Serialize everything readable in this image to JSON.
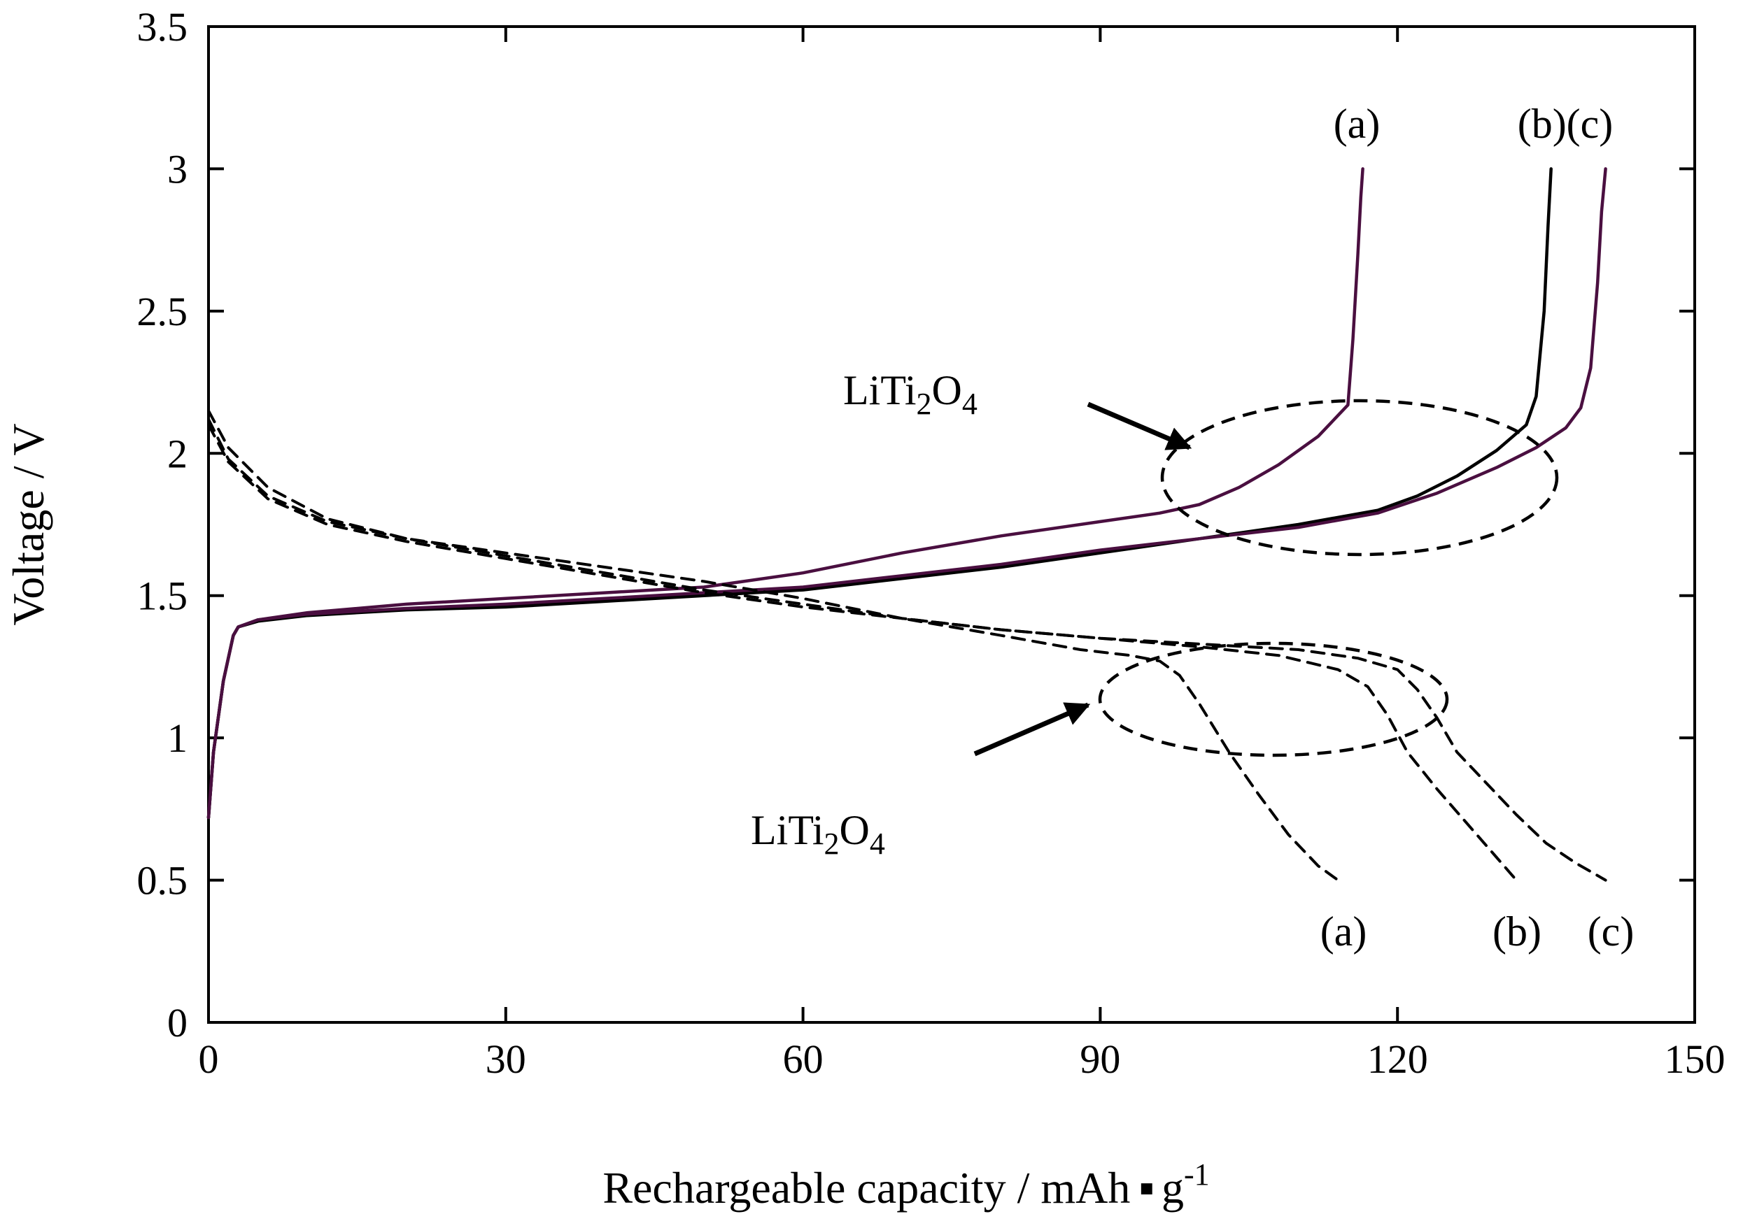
{
  "chart_data": {
    "type": "line",
    "title": "",
    "xlabel": "Rechargeable capacity / mAh",
    "xlabel_dot": "▪",
    "xlabel_unit": "g",
    "xlabel_exp": "-1",
    "ylabel": "Voltage / V",
    "xlim": [
      0,
      150
    ],
    "ylim": [
      0,
      3.5
    ],
    "xticks": [
      0,
      30,
      60,
      90,
      120,
      150
    ],
    "xtick_labels": [
      "0",
      "30",
      "60",
      "90",
      "120",
      "150"
    ],
    "yticks": [
      0,
      0.5,
      1,
      1.5,
      2,
      2.5,
      3,
      3.5
    ],
    "ytick_labels": [
      "0",
      "0.5",
      "1",
      "1.5",
      "2",
      "2.5",
      "3",
      "3.5"
    ],
    "grid": false,
    "colors": {
      "charge_a": "#4a0f40",
      "charge_b": "#000000",
      "charge_c": "#4a0f40",
      "discharge": "#000000"
    },
    "series": [
      {
        "name": "charge (a)",
        "style": "solid",
        "x": [
          0,
          0.5,
          1.5,
          2.5,
          3,
          5,
          10,
          20,
          30,
          40,
          50,
          60,
          70,
          80,
          90,
          96,
          100,
          104,
          108,
          112,
          115,
          115.5,
          116,
          116.3,
          116.5
        ],
        "y": [
          0.72,
          0.95,
          1.2,
          1.36,
          1.39,
          1.415,
          1.44,
          1.47,
          1.49,
          1.51,
          1.53,
          1.58,
          1.65,
          1.71,
          1.76,
          1.79,
          1.82,
          1.88,
          1.96,
          2.06,
          2.17,
          2.4,
          2.7,
          2.9,
          3.0
        ]
      },
      {
        "name": "charge (b)",
        "style": "solid",
        "x": [
          0,
          0.5,
          1.5,
          2.5,
          3,
          5,
          10,
          20,
          30,
          40,
          50,
          60,
          70,
          80,
          90,
          100,
          110,
          118,
          122,
          126,
          130,
          133,
          134,
          134.8,
          135.2,
          135.5
        ],
        "y": [
          0.72,
          0.95,
          1.2,
          1.36,
          1.39,
          1.41,
          1.43,
          1.45,
          1.46,
          1.48,
          1.5,
          1.52,
          1.56,
          1.6,
          1.65,
          1.7,
          1.75,
          1.8,
          1.85,
          1.92,
          2.01,
          2.1,
          2.2,
          2.5,
          2.8,
          3.0
        ]
      },
      {
        "name": "charge (c)",
        "style": "solid",
        "x": [
          0,
          0.5,
          1.5,
          2.5,
          3,
          5,
          10,
          20,
          30,
          40,
          50,
          60,
          70,
          80,
          90,
          100,
          110,
          118,
          124,
          130,
          134,
          137,
          138.5,
          139.5,
          140.2,
          140.6,
          141
        ],
        "y": [
          0.72,
          0.95,
          1.2,
          1.36,
          1.39,
          1.415,
          1.435,
          1.455,
          1.47,
          1.49,
          1.51,
          1.53,
          1.57,
          1.61,
          1.66,
          1.7,
          1.74,
          1.79,
          1.86,
          1.95,
          2.02,
          2.09,
          2.16,
          2.3,
          2.6,
          2.85,
          3.0
        ]
      },
      {
        "name": "discharge (a)",
        "style": "dashed",
        "x": [
          0,
          2,
          6,
          12,
          20,
          30,
          40,
          50,
          60,
          70,
          80,
          88,
          93,
          96,
          98,
          100,
          103,
          106,
          109,
          112,
          114
        ],
        "y": [
          2.15,
          2.02,
          1.88,
          1.77,
          1.7,
          1.65,
          1.6,
          1.55,
          1.49,
          1.42,
          1.36,
          1.31,
          1.29,
          1.27,
          1.22,
          1.12,
          0.95,
          0.8,
          0.66,
          0.55,
          0.5
        ]
      },
      {
        "name": "discharge (b)",
        "style": "dashed",
        "x": [
          0,
          2,
          6,
          12,
          20,
          30,
          40,
          50,
          60,
          70,
          80,
          90,
          100,
          108,
          114,
          117,
          119,
          121,
          124,
          127,
          130,
          132
        ],
        "y": [
          2.12,
          1.98,
          1.85,
          1.76,
          1.7,
          1.64,
          1.58,
          1.52,
          1.47,
          1.42,
          1.38,
          1.35,
          1.32,
          1.29,
          1.24,
          1.18,
          1.08,
          0.95,
          0.82,
          0.7,
          0.58,
          0.5
        ]
      },
      {
        "name": "discharge (c)",
        "style": "dashed",
        "x": [
          0,
          2,
          6,
          12,
          20,
          30,
          40,
          50,
          60,
          70,
          80,
          90,
          100,
          110,
          116,
          120,
          122,
          124,
          126,
          129,
          132,
          135,
          138,
          141
        ],
        "y": [
          2.1,
          1.97,
          1.84,
          1.75,
          1.69,
          1.63,
          1.57,
          1.51,
          1.46,
          1.42,
          1.38,
          1.35,
          1.33,
          1.31,
          1.28,
          1.24,
          1.17,
          1.07,
          0.95,
          0.84,
          0.73,
          0.63,
          0.56,
          0.5
        ]
      }
    ],
    "annotations": {
      "charge_labels": [
        "(a)",
        "(b)(c)"
      ],
      "discharge_labels": [
        "(a)",
        "(b)",
        "(c)"
      ],
      "compound_upper": {
        "base": "LiTi",
        "sub1": "2",
        "mid": "O",
        "sub2": "4"
      },
      "compound_lower": {
        "base": "LiTi",
        "sub1": "2",
        "mid": "O",
        "sub2": "4"
      }
    }
  }
}
